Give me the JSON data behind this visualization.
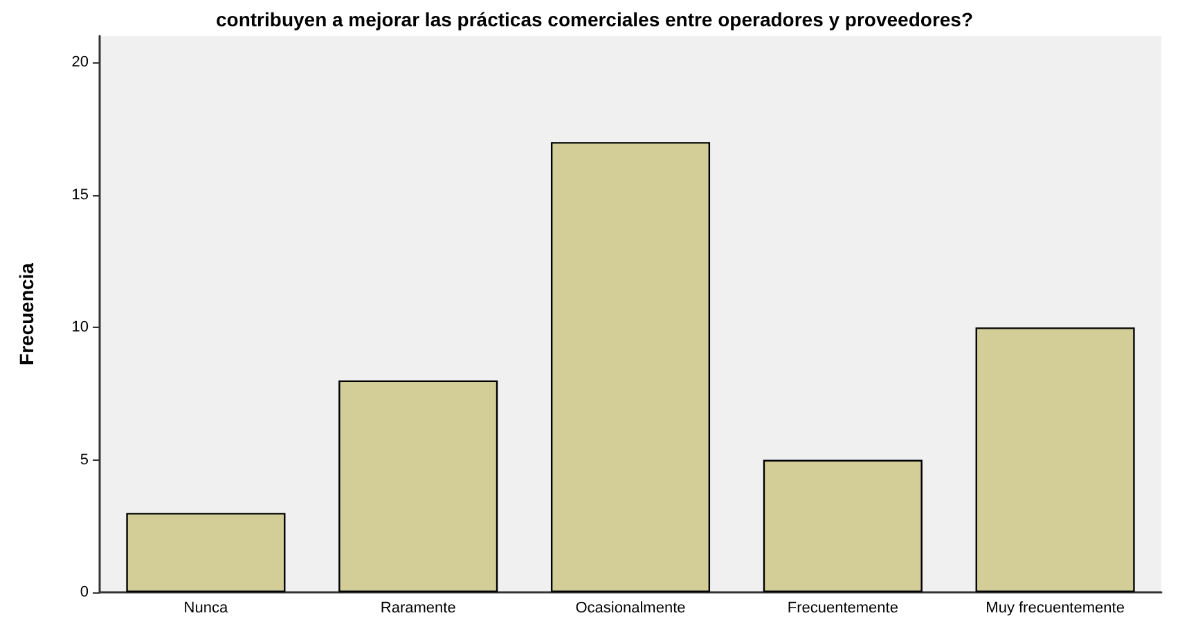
{
  "chart_data": {
    "type": "bar",
    "title": "contribuyen a mejorar las prácticas comerciales entre operadores y proveedores?",
    "ylabel": "Frecuencia",
    "categories": [
      "Nunca",
      "Raramente",
      "Ocasionalmente",
      "Frecuentemente",
      "Muy frecuentemente"
    ],
    "values": [
      3,
      8,
      17,
      5,
      10
    ],
    "color": "#d3ce98",
    "ylim": [
      0,
      21
    ],
    "yticks": [
      0,
      5,
      10,
      15,
      20
    ]
  }
}
